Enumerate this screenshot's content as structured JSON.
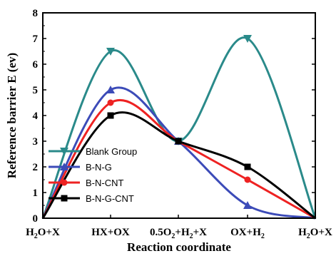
{
  "chart_data": {
    "type": "line",
    "xlabel": "Reaction coordinate",
    "ylabel": "Reference barrier E (ev)",
    "ylim": [
      0,
      8
    ],
    "yticks": [
      0,
      1,
      2,
      3,
      4,
      5,
      6,
      7,
      8
    ],
    "categories": [
      {
        "parts": [
          {
            "t": "H"
          },
          {
            "t": "2",
            "sub": true
          },
          {
            "t": "O+X"
          }
        ]
      },
      {
        "parts": [
          {
            "t": "HX+OX"
          }
        ]
      },
      {
        "parts": [
          {
            "t": "0.5O"
          },
          {
            "t": "2",
            "sub": true
          },
          {
            "t": "+H"
          },
          {
            "t": "2",
            "sub": true
          },
          {
            "t": "+X"
          }
        ]
      },
      {
        "parts": [
          {
            "t": "OX+H"
          },
          {
            "t": "2",
            "sub": true
          }
        ]
      },
      {
        "parts": [
          {
            "t": "H"
          },
          {
            "t": "2",
            "sub": true
          },
          {
            "t": "O+X"
          }
        ]
      }
    ],
    "series": [
      {
        "name": "Blank Group",
        "color": "#2a8a8a",
        "marker": "triangle-down",
        "values": [
          0,
          6.5,
          3.0,
          7.0,
          0
        ]
      },
      {
        "name": "B-N-G",
        "color": "#3c4bb8",
        "marker": "triangle-up",
        "values": [
          0,
          5.0,
          3.0,
          0.5,
          0
        ]
      },
      {
        "name": "B-N-CNT",
        "color": "#ee2222",
        "marker": "circle",
        "values": [
          0,
          4.5,
          3.0,
          1.5,
          0
        ]
      },
      {
        "name": "B-N-G-CNT",
        "color": "#000000",
        "marker": "square",
        "values": [
          0,
          4.0,
          3.0,
          2.0,
          0
        ]
      }
    ],
    "legend_position": "lower-left",
    "grid": false
  }
}
